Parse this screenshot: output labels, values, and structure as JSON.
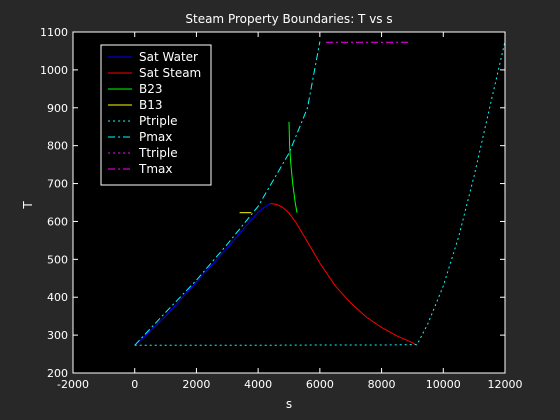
{
  "chart_data": {
    "type": "line",
    "title": "Steam Property Boundaries: T vs s",
    "xlabel": "s",
    "ylabel": "T",
    "xlim": [
      -2000,
      12000
    ],
    "ylim": [
      200,
      1100
    ],
    "xticks": [
      -2000,
      0,
      2000,
      4000,
      6000,
      8000,
      10000,
      12000
    ],
    "yticks": [
      200,
      300,
      400,
      500,
      600,
      700,
      800,
      900,
      1000,
      1100
    ],
    "grid": false,
    "legend_location": "upper-left",
    "series": [
      {
        "name": "Sat Water",
        "color": "#0000ff",
        "style": "solid",
        "x": [
          0,
          500,
          1000,
          1500,
          2000,
          2500,
          3000,
          3500,
          4000,
          4300,
          4400
        ],
        "y": [
          273,
          310,
          350,
          395,
          440,
          485,
          530,
          578,
          625,
          643,
          647
        ]
      },
      {
        "name": "Sat Steam",
        "color": "#ff0000",
        "style": "solid",
        "x": [
          4400,
          4600,
          4800,
          5000,
          5200,
          5500,
          6000,
          6500,
          7000,
          7500,
          8000,
          8500,
          9000,
          9150
        ],
        "y": [
          647,
          645,
          637,
          622,
          600,
          560,
          490,
          430,
          385,
          348,
          320,
          298,
          280,
          273
        ]
      },
      {
        "name": "B23",
        "color": "#00ff00",
        "style": "solid",
        "x": [
          5260,
          5200,
          5120,
          5060,
          5020,
          5000
        ],
        "y": [
          623,
          650,
          700,
          750,
          800,
          863
        ]
      },
      {
        "name": "B13",
        "color": "#ffff00",
        "style": "solid",
        "x": [
          3400,
          3780
        ],
        "y": [
          623,
          623
        ]
      },
      {
        "name": "Ptriple",
        "color": "#00ffff",
        "style": "dotted",
        "x": [
          0,
          2000,
          4000,
          6000,
          8000,
          9150,
          9500,
          10000,
          10500,
          11000,
          11500,
          12000
        ],
        "y": [
          273,
          273,
          273,
          274,
          274,
          275,
          330,
          430,
          560,
          720,
          900,
          1075
        ]
      },
      {
        "name": "Pmax",
        "color": "#00ffff",
        "style": "dashdot",
        "x": [
          0,
          1000,
          2000,
          3000,
          4000,
          5000,
          5600,
          6000
        ],
        "y": [
          273,
          360,
          445,
          540,
          640,
          780,
          900,
          1075
        ]
      },
      {
        "name": "Ttriple",
        "color": "#ff00ff",
        "style": "dotted",
        "x": [],
        "y": []
      },
      {
        "name": "Tmax",
        "color": "#ff00ff",
        "style": "dashdot",
        "x": [
          6200,
          7000,
          8000,
          8900
        ],
        "y": [
          1073,
          1073,
          1073,
          1073
        ]
      }
    ]
  }
}
